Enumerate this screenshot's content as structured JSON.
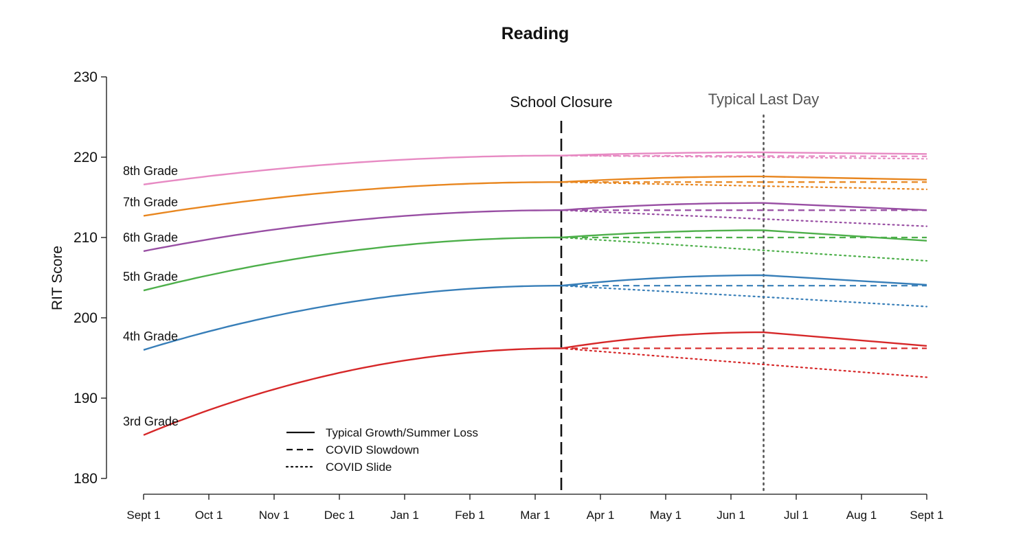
{
  "chart_data": {
    "type": "line",
    "title": "Reading",
    "ylabel": "RIT Score",
    "xlabel": "",
    "ylim": [
      180,
      230
    ],
    "yticks": [
      180,
      190,
      200,
      210,
      220,
      230
    ],
    "xlim": [
      0,
      12
    ],
    "x_tick_labels": [
      "Sept 1",
      "Oct 1",
      "Nov 1",
      "Dec 1",
      "Jan 1",
      "Feb 1",
      "Mar 1",
      "Apr 1",
      "May 1",
      "Jun 1",
      "Jul 1",
      "Aug 1",
      "Sept 1"
    ],
    "annotations": [
      {
        "label": "School Closure",
        "x_month": 6.4,
        "style": "dashed",
        "color": "#111111"
      },
      {
        "label": "Typical Last Day",
        "x_month": 9.5,
        "style": "dotted",
        "color": "#555555"
      }
    ],
    "legend": {
      "position": "bottom-left",
      "entries": [
        {
          "label": "Typical Growth/Summer Loss",
          "style": "solid"
        },
        {
          "label": "COVID Slowdown",
          "style": "dashed"
        },
        {
          "label": "COVID Slide",
          "style": "dotted"
        }
      ]
    },
    "series": [
      {
        "name": "8th Grade",
        "color": "#E78AC3",
        "start": 216.6,
        "closure": 220.2,
        "peak": 220.6,
        "typical_end": 220.4,
        "slowdown_end": 220.1,
        "slide_lastday": 220.0,
        "slide_end": 219.8
      },
      {
        "name": "7th Grade",
        "color": "#E8861F",
        "start": 212.7,
        "closure": 216.9,
        "peak": 217.6,
        "typical_end": 217.2,
        "slowdown_end": 216.9,
        "slide_lastday": 216.4,
        "slide_end": 216.0
      },
      {
        "name": "6th Grade",
        "color": "#984EA3",
        "start": 208.3,
        "closure": 213.4,
        "peak": 214.3,
        "typical_end": 213.4,
        "slowdown_end": 213.4,
        "slide_lastday": 212.3,
        "slide_end": 211.4
      },
      {
        "name": "5th Grade",
        "color": "#4DAF4A",
        "start": 203.4,
        "closure": 210.0,
        "peak": 210.9,
        "typical_end": 209.6,
        "slowdown_end": 210.0,
        "slide_lastday": 208.4,
        "slide_end": 207.1
      },
      {
        "name": "4th Grade",
        "color": "#377EB8",
        "start": 196.0,
        "closure": 204.0,
        "peak": 205.3,
        "typical_end": 204.1,
        "slowdown_end": 204.0,
        "slide_lastday": 202.6,
        "slide_end": 201.4
      },
      {
        "name": "3rd Grade",
        "color": "#D62728",
        "start": 185.4,
        "closure": 196.2,
        "peak": 198.2,
        "typical_end": 196.5,
        "slowdown_end": 196.2,
        "slide_lastday": 194.2,
        "slide_end": 192.6
      }
    ]
  }
}
